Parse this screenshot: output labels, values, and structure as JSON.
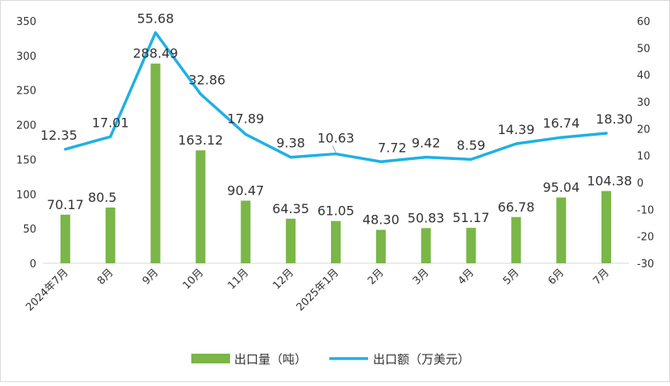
{
  "chart_data": {
    "type": "bar-line-combo",
    "categories": [
      "2024年7月",
      "8月",
      "9月",
      "10月",
      "11月",
      "12月",
      "2025年1月",
      "2月",
      "3月",
      "4月",
      "5月",
      "6月",
      "7月"
    ],
    "series": [
      {
        "name": "出口量（吨）",
        "type": "bar",
        "axis": "left",
        "color": "#7ab648",
        "values": [
          70.17,
          80.5,
          288.49,
          163.12,
          90.47,
          64.35,
          61.05,
          48.3,
          50.83,
          51.17,
          66.78,
          95.04,
          104.38
        ],
        "labels": [
          "70.17",
          "80.5",
          "288.49",
          "163.12",
          "90.47",
          "64.35",
          "61.05",
          "48.30",
          "50.83",
          "51.17",
          "66.78",
          "95.04",
          "104.38"
        ]
      },
      {
        "name": "出口额（万美元）",
        "type": "line",
        "axis": "right",
        "color": "#1fb0e6",
        "values": [
          12.35,
          17.01,
          55.68,
          32.86,
          17.89,
          9.38,
          10.63,
          7.72,
          9.42,
          8.59,
          14.39,
          16.74,
          18.3
        ],
        "labels": [
          "12.35",
          "17.01",
          "55.68",
          "32.86",
          "17.89",
          "9.38",
          "10.63",
          "7.72",
          "9.42",
          "8.59",
          "14.39",
          "16.74",
          "18.30"
        ]
      }
    ],
    "y_left": {
      "min": 0,
      "max": 350,
      "step": 50,
      "ticks": [
        "0",
        "50",
        "100",
        "150",
        "200",
        "250",
        "300",
        "350"
      ]
    },
    "y_right": {
      "min": -30,
      "max": 60,
      "step": 10,
      "ticks": [
        "-30",
        "-20",
        "-10",
        "0",
        "10",
        "20",
        "30",
        "40",
        "50",
        "60"
      ]
    },
    "grid": false,
    "legend_position": "bottom"
  }
}
